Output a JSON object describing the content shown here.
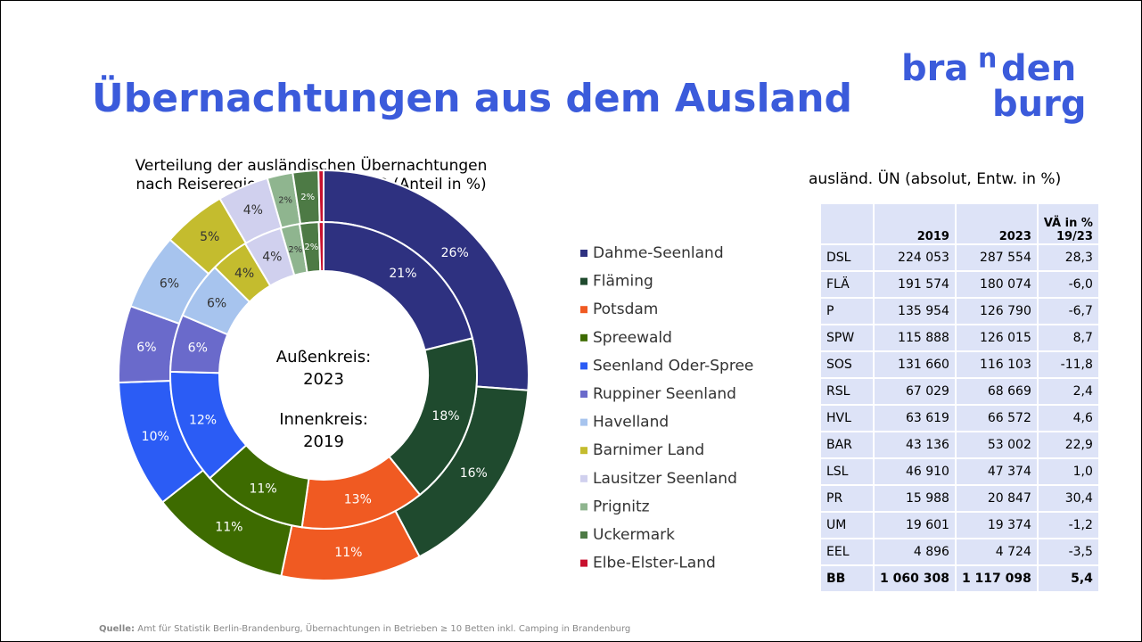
{
  "header": {
    "title": "Übernachtungen aus dem Ausland",
    "logo": [
      "bra",
      "n",
      "den",
      "burg"
    ]
  },
  "chart_data": {
    "type": "donut",
    "title": [
      "Verteilung der ausländischen Übernachtungen",
      "nach Reiseregionen 2019 & 2023 (Anteil in %)"
    ],
    "center_labels": [
      "Außenkreis:",
      "2023",
      "Innenkreis:",
      "2019"
    ],
    "categories": [
      "Dahme-Seenland",
      "Fläming",
      "Potsdam",
      "Spreewald",
      "Seenland Oder-Spree",
      "Ruppiner Seenland",
      "Havelland",
      "Barnimer Land",
      "Lausitzer Seenland",
      "Prignitz",
      "Uckermark",
      "Elbe-Elster-Land"
    ],
    "colors": [
      "#2e3180",
      "#1f4a2e",
      "#f05a22",
      "#3d6b00",
      "#2b5cf5",
      "#6a6acb",
      "#a7c4ee",
      "#c4bc2e",
      "#d0d0ee",
      "#8fb58f",
      "#4d7a45",
      "#c8102e"
    ],
    "series": [
      {
        "values": [
          26,
          16,
          11,
          11,
          10,
          6,
          6,
          5,
          4,
          2,
          2,
          0.4
        ],
        "value_labels": [
          "26%",
          "16%",
          "11%",
          "11%",
          "10%",
          "6%",
          "6%",
          "5%",
          "4%",
          "2%",
          "2%",
          null
        ]
      },
      {
        "values": [
          21,
          18,
          13,
          11,
          12,
          6,
          6,
          4,
          4,
          2,
          2,
          0.5
        ],
        "value_labels": [
          "21%",
          "18%",
          "13%",
          "11%",
          "12%",
          "6%",
          "6%",
          "4%",
          "4%",
          "2%",
          "2%",
          null
        ]
      }
    ]
  },
  "table": {
    "title": "ausländ. ÜN (absolut, Entw. in %)",
    "header": [
      "",
      "2019",
      "2023",
      [
        "VÄ in %",
        "19/23"
      ]
    ],
    "rows": [
      [
        "DSL",
        "224 053",
        "287 554",
        "28,3"
      ],
      [
        "FLÄ",
        "191 574",
        "180 074",
        "-6,0"
      ],
      [
        "P",
        "135 954",
        "126 790",
        "-6,7"
      ],
      [
        "SPW",
        "115 888",
        "126 015",
        "8,7"
      ],
      [
        "SOS",
        "131 660",
        "116 103",
        "-11,8"
      ],
      [
        "RSL",
        "67 029",
        "68 669",
        "2,4"
      ],
      [
        "HVL",
        "63 619",
        "66 572",
        "4,6"
      ],
      [
        "BAR",
        "43 136",
        "53 002",
        "22,9"
      ],
      [
        "LSL",
        "46 910",
        "47 374",
        "1,0"
      ],
      [
        "PR",
        "15 988",
        "20 847",
        "30,4"
      ],
      [
        "UM",
        "19 601",
        "19 374",
        "-1,2"
      ],
      [
        "EEL",
        "4 896",
        "4 724",
        "-3,5"
      ],
      [
        "BB",
        "1 060 308",
        "1 117 098",
        "5,4"
      ]
    ]
  },
  "footer": {
    "source_label": "Quelle:",
    "source": "Amt für Statistik Berlin-Brandenburg, Übernachtungen in Betrieben ≥ 10 Betten inkl. Camping in Brandenburg"
  }
}
